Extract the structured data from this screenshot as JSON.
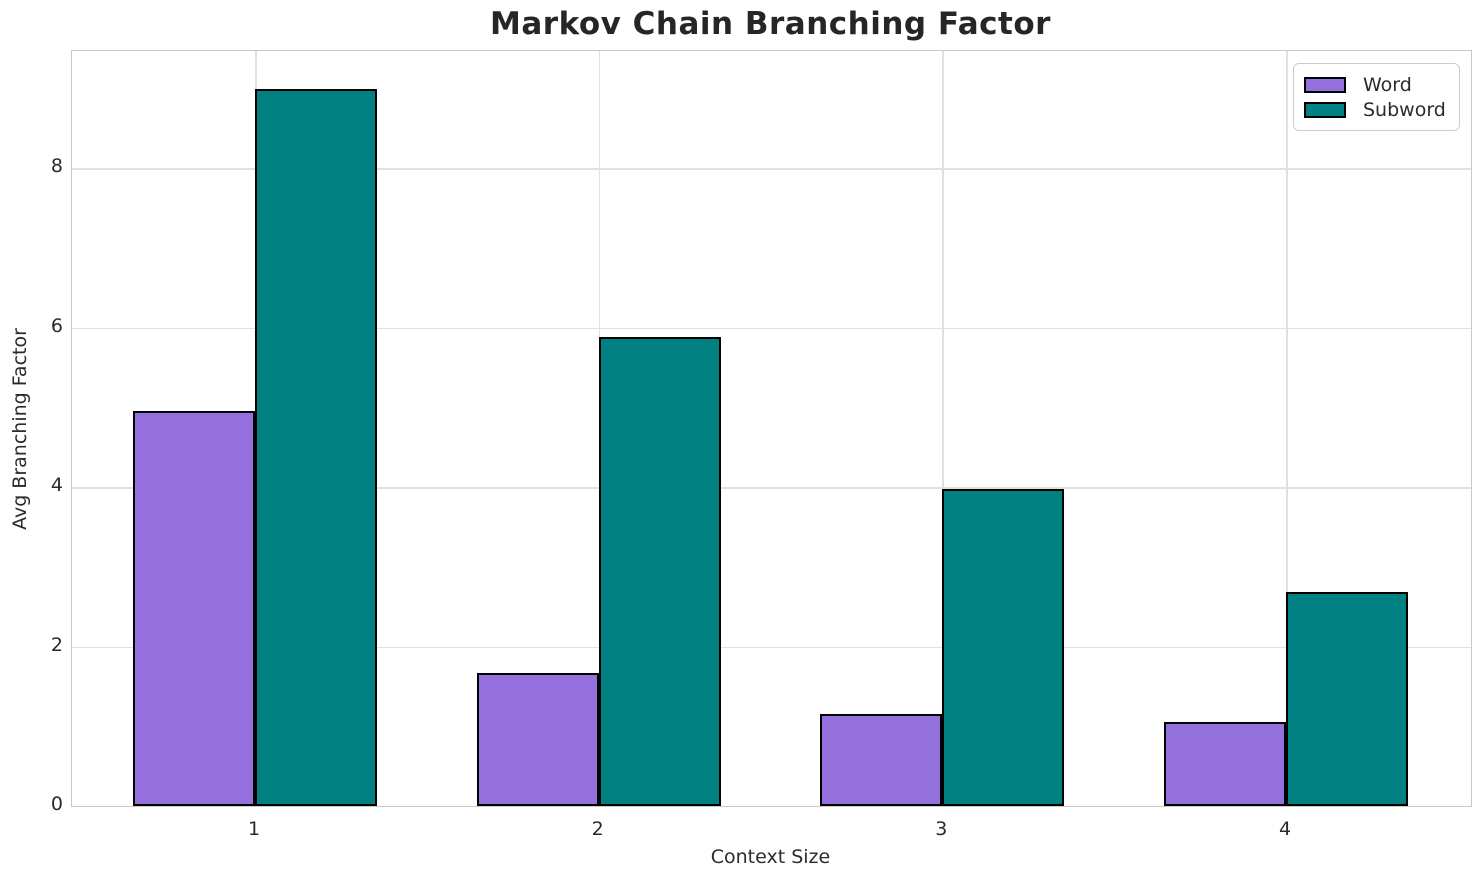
{
  "chart_data": {
    "type": "bar",
    "title": "Markov Chain Branching Factor",
    "xlabel": "Context Size",
    "ylabel": "Avg Branching Factor",
    "categories": [
      "1",
      "2",
      "3",
      "4"
    ],
    "series": [
      {
        "name": "Word",
        "color": "#9370DB",
        "values": [
          4.95,
          1.67,
          1.16,
          1.05
        ]
      },
      {
        "name": "Subword",
        "color": "#008080",
        "values": [
          8.99,
          5.88,
          3.98,
          2.68
        ]
      }
    ],
    "bar_edge_color": "#000000",
    "yticks": [
      0,
      2,
      4,
      6,
      8
    ],
    "ylim": [
      0,
      9.47
    ],
    "grid": true,
    "legend_position": "upper right"
  },
  "colors": {
    "background": "#ffffff",
    "grid": "#e0e0e0",
    "spine": "#c9c9c9",
    "text": "#2b2b2b",
    "word_fill": "#9370DB",
    "subword_fill": "#008080"
  }
}
